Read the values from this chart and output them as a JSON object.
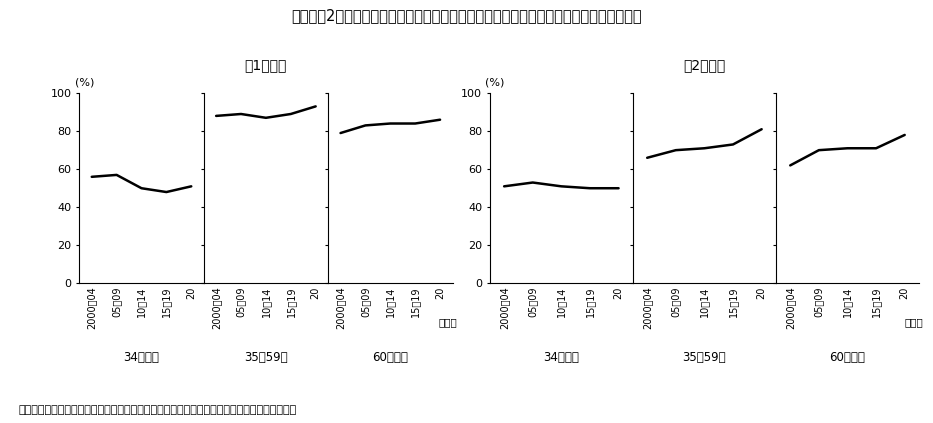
{
  "title": "付２－（2）－１図　男女別・年齢階級別にみた入職者に占める転職入職者の割合の推移",
  "subtitle_male": "（1）男性",
  "subtitle_female": "（2）女性",
  "x_labels": [
    "2000～04",
    "05～09",
    "10～14",
    "15～19",
    "20"
  ],
  "x_positions": [
    0,
    1,
    2,
    3,
    4
  ],
  "age_groups": [
    "34歳以下",
    "35～59歳",
    "60歳以上"
  ],
  "male_data": {
    "34歳以下": [
      56,
      57,
      50,
      48,
      51
    ],
    "35～59歳": [
      88,
      89,
      87,
      89,
      93
    ],
    "60歳以上": [
      79,
      83,
      84,
      84,
      86
    ]
  },
  "female_data": {
    "34歳以下": [
      51,
      53,
      51,
      50,
      50
    ],
    "35～59歳": [
      66,
      70,
      71,
      73,
      81
    ],
    "60歳以上": [
      62,
      70,
      71,
      71,
      78
    ]
  },
  "ylim": [
    0,
    100
  ],
  "yticks": [
    0,
    20,
    40,
    60,
    80,
    100
  ],
  "ylabel": "(%)",
  "xlabel_unit": "（年）",
  "source": "資料出所　厚生労働省「雇用動向調査」をもとに厚生労働省政策統括官付政策統括室にて作成",
  "line_color": "#000000",
  "line_width": 1.8,
  "background_color": "#ffffff"
}
